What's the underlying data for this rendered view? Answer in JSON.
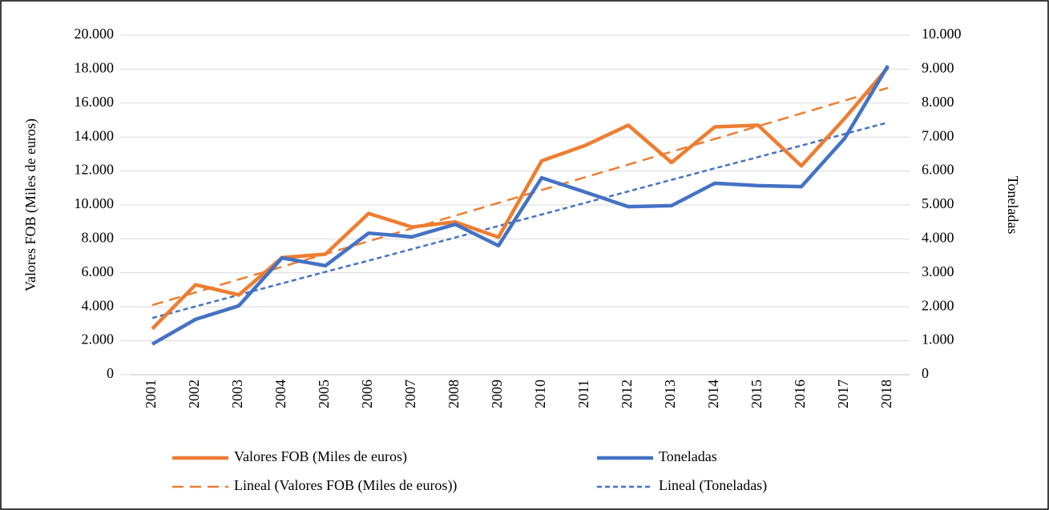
{
  "chart_data": {
    "type": "line",
    "ylabel": "Valores FOB (Miles de euros)",
    "y2label": "Toneladas",
    "categories": [
      "2001",
      "2002",
      "2003",
      "2004",
      "2005",
      "2006",
      "2007",
      "2008",
      "2009",
      "2010",
      "2011",
      "2012",
      "2013",
      "2014",
      "2015",
      "2016",
      "2017",
      "2018"
    ],
    "ylim": [
      0,
      20000
    ],
    "yticks": [
      0,
      {
        "value": 2000,
        "label": "2.000"
      },
      {
        "value": 4000,
        "label": "4.000"
      },
      {
        "value": 6000,
        "label": "6.000"
      },
      {
        "value": 8000,
        "label": "8.000"
      },
      {
        "value": 10000,
        "label": "10.000"
      },
      {
        "value": 12000,
        "label": "12.000"
      },
      {
        "value": 14000,
        "label": "14.000"
      },
      {
        "value": 16000,
        "label": "16.000"
      },
      {
        "value": 18000,
        "label": "18.000"
      },
      {
        "value": 20000,
        "label": "20.000"
      }
    ],
    "y2lim": [
      0,
      10000
    ],
    "y2ticks": [
      0,
      {
        "value": 1000,
        "label": "1.000"
      },
      {
        "value": 2000,
        "label": "2.000"
      },
      {
        "value": 3000,
        "label": "3.000"
      },
      {
        "value": 4000,
        "label": "4.000"
      },
      {
        "value": 5000,
        "label": "5.000"
      },
      {
        "value": 6000,
        "label": "6.000"
      },
      {
        "value": 7000,
        "label": "7.000"
      },
      {
        "value": 8000,
        "label": "8.000"
      },
      {
        "value": 9000,
        "label": "9.000"
      },
      {
        "value": 10000,
        "label": "10.000"
      }
    ],
    "grid": true,
    "legend": "bottom",
    "series": [
      {
        "name": "Valores FOB (Miles de euros)",
        "color": "#ed7d31",
        "dash": "solid",
        "axis": "y",
        "values": [
          2700,
          5300,
          4700,
          6900,
          7100,
          9500,
          8700,
          9000,
          8100,
          12600,
          13500,
          14700,
          12500,
          14600,
          14700,
          12300,
          15100,
          18100
        ]
      },
      {
        "name": "Toneladas",
        "color": "#4472c4",
        "dash": "solid",
        "axis": "y2",
        "values": [
          900,
          1630,
          2030,
          3440,
          3210,
          4170,
          4060,
          4430,
          3800,
          5800,
          5380,
          4950,
          4980,
          5640,
          5570,
          5540,
          6960,
          9100
        ]
      },
      {
        "name": "Lineal (Valores FOB (Miles de euros))",
        "color": "#ed7d31",
        "dash": "long",
        "axis": "y",
        "values": [
          4100,
          4850,
          5610,
          6360,
          7110,
          7860,
          8620,
          9370,
          10120,
          10880,
          11630,
          12380,
          13140,
          13890,
          14640,
          15390,
          16150,
          16900
        ]
      },
      {
        "name": "Lineal (Toneladas)",
        "color": "#4472c4",
        "dash": "short",
        "axis": "y2",
        "values": [
          1670,
          2010,
          2350,
          2690,
          3030,
          3360,
          3700,
          4040,
          4380,
          4720,
          5060,
          5400,
          5740,
          6080,
          6410,
          6750,
          7090,
          7430
        ]
      }
    ]
  }
}
